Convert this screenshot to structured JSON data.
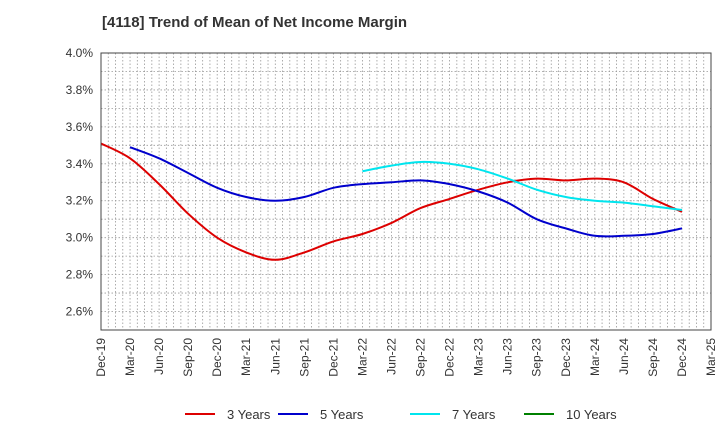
{
  "chart_data": {
    "type": "line",
    "title": "[4118]  Trend of Mean of Net Income Margin",
    "xlabel": "",
    "ylabel": "",
    "x_ticks": [
      "Dec-19",
      "Mar-20",
      "Jun-20",
      "Sep-20",
      "Dec-20",
      "Mar-21",
      "Jun-21",
      "Sep-21",
      "Dec-21",
      "Mar-22",
      "Jun-22",
      "Sep-22",
      "Dec-22",
      "Mar-23",
      "Jun-23",
      "Sep-23",
      "Dec-23",
      "Mar-24",
      "Jun-24",
      "Sep-24",
      "Dec-24",
      "Mar-25"
    ],
    "y_ticks": [
      "2.6%",
      "2.8%",
      "3.0%",
      "3.2%",
      "3.4%",
      "3.6%",
      "3.8%",
      "4.0%"
    ],
    "ylim": [
      2.5,
      4.0
    ],
    "grid": true,
    "legend_position": "bottom",
    "series": [
      {
        "name": "3 Years",
        "color": "#dd0000",
        "x": [
          "Dec-19",
          "Mar-20",
          "Jun-20",
          "Sep-20",
          "Dec-20",
          "Mar-21",
          "Jun-21",
          "Sep-21",
          "Dec-21",
          "Mar-22",
          "Jun-22",
          "Sep-22",
          "Dec-22",
          "Mar-23",
          "Jun-23",
          "Sep-23",
          "Dec-23",
          "Mar-24",
          "Jun-24",
          "Sep-24",
          "Dec-24"
        ],
        "values": [
          3.51,
          3.43,
          3.29,
          3.13,
          3.0,
          2.92,
          2.88,
          2.92,
          2.98,
          3.02,
          3.08,
          3.16,
          3.21,
          3.26,
          3.3,
          3.32,
          3.31,
          3.32,
          3.3,
          3.21,
          3.14
        ]
      },
      {
        "name": "5 Years",
        "color": "#0000cc",
        "x": [
          "Mar-20",
          "Jun-20",
          "Sep-20",
          "Dec-20",
          "Mar-21",
          "Jun-21",
          "Sep-21",
          "Dec-21",
          "Mar-22",
          "Jun-22",
          "Sep-22",
          "Dec-22",
          "Mar-23",
          "Jun-23",
          "Sep-23",
          "Dec-23",
          "Mar-24",
          "Jun-24",
          "Sep-24",
          "Dec-24"
        ],
        "values": [
          3.49,
          3.43,
          3.35,
          3.27,
          3.22,
          3.2,
          3.22,
          3.27,
          3.29,
          3.3,
          3.31,
          3.29,
          3.25,
          3.19,
          3.1,
          3.05,
          3.01,
          3.01,
          3.02,
          3.05
        ]
      },
      {
        "name": "7 Years",
        "color": "#00e5ee",
        "x": [
          "Mar-22",
          "Jun-22",
          "Sep-22",
          "Dec-22",
          "Mar-23",
          "Jun-23",
          "Sep-23",
          "Dec-23",
          "Mar-24",
          "Jun-24",
          "Sep-24",
          "Dec-24"
        ],
        "values": [
          3.36,
          3.39,
          3.41,
          3.4,
          3.37,
          3.32,
          3.26,
          3.22,
          3.2,
          3.19,
          3.17,
          3.15
        ]
      },
      {
        "name": "10 Years",
        "color": "#008000",
        "x": [],
        "values": []
      }
    ]
  }
}
